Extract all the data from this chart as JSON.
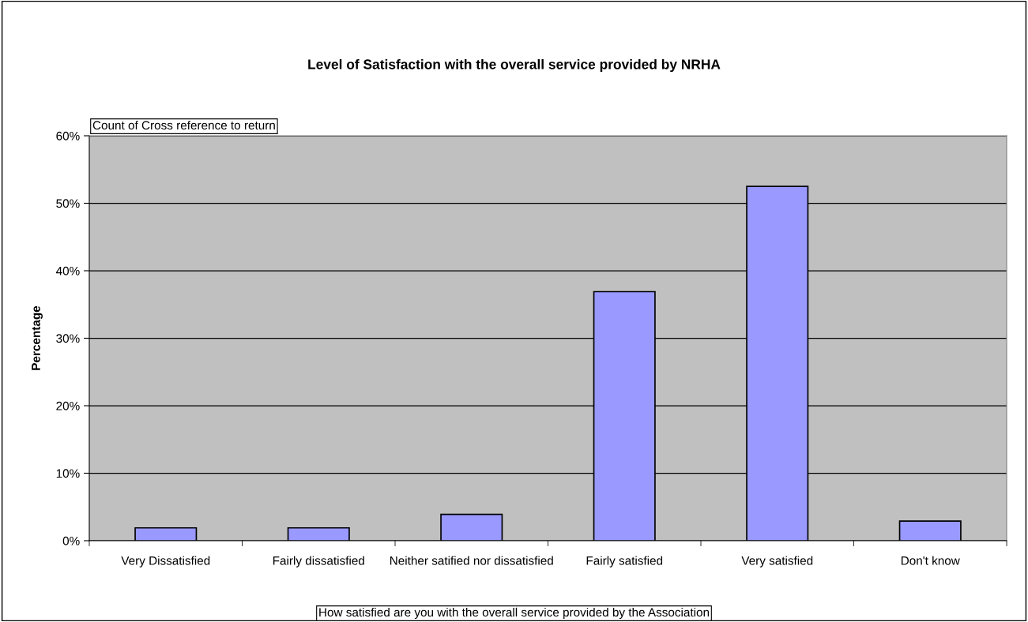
{
  "chart_data": {
    "type": "bar",
    "title": "Level of Satisfaction with the overall service provided by NRHA",
    "xlabel": "How satisfied are you with the overall service provided by the Association",
    "ylabel": "Percentage",
    "annotations": [
      "Count of Cross reference to return"
    ],
    "categories": [
      "Very Dissatisfied",
      "Fairly dissatisfied",
      "Neither satified nor dissatisfied",
      "Fairly satisfied",
      "Very satisfied",
      "Don't know"
    ],
    "values": [
      1.9,
      1.9,
      3.9,
      36.9,
      52.5,
      2.9
    ],
    "color": "#9999ff",
    "ylim": [
      0,
      60
    ],
    "yticks": [
      {
        "value": 0,
        "label": "0%"
      },
      {
        "value": 10,
        "label": "10%"
      },
      {
        "value": 20,
        "label": "20%"
      },
      {
        "value": 30,
        "label": "30%"
      },
      {
        "value": 40,
        "label": "40%"
      },
      {
        "value": 50,
        "label": "50%"
      },
      {
        "value": 60,
        "label": "60%"
      }
    ],
    "grid": "y",
    "legend": false
  }
}
